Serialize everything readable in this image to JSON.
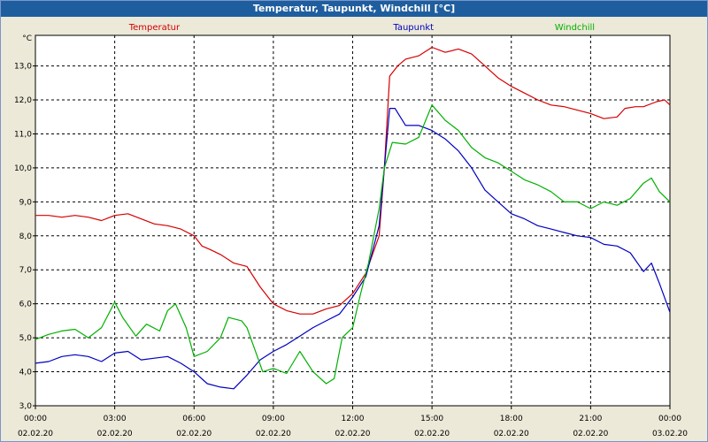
{
  "window": {
    "title": "Temperatur, Taupunkt, Windchill [°C]"
  },
  "chart_data": {
    "type": "line",
    "title": "Temperatur, Taupunkt, Windchill [°C]",
    "ylabel": "°C",
    "ylim": [
      3.0,
      13.9
    ],
    "yticks": [
      "3,0",
      "4,0",
      "5,0",
      "6,0",
      "7,0",
      "8,0",
      "9,0",
      "10,0",
      "11,0",
      "12,0",
      "13,0"
    ],
    "xlim": [
      0,
      24
    ],
    "xticks": [
      {
        "hour": 0,
        "time": "00:00",
        "date": "02.02.20"
      },
      {
        "hour": 3,
        "time": "03:00",
        "date": "02.02.20"
      },
      {
        "hour": 6,
        "time": "06:00",
        "date": "02.02.20"
      },
      {
        "hour": 9,
        "time": "09:00",
        "date": "02.02.20"
      },
      {
        "hour": 12,
        "time": "12:00",
        "date": "02.02.20"
      },
      {
        "hour": 15,
        "time": "15:00",
        "date": "02.02.20"
      },
      {
        "hour": 18,
        "time": "18:00",
        "date": "02.02.20"
      },
      {
        "hour": 21,
        "time": "21:00",
        "date": "02.02.20"
      },
      {
        "hour": 24,
        "time": "00:00",
        "date": "03.02.20"
      }
    ],
    "grid": true,
    "series": [
      {
        "name": "Temperatur",
        "color": "#d40000",
        "points": [
          [
            0,
            8.6
          ],
          [
            0.5,
            8.6
          ],
          [
            1,
            8.55
          ],
          [
            1.5,
            8.6
          ],
          [
            2,
            8.55
          ],
          [
            2.5,
            8.45
          ],
          [
            3,
            8.6
          ],
          [
            3.5,
            8.65
          ],
          [
            4,
            8.5
          ],
          [
            4.5,
            8.35
          ],
          [
            5,
            8.3
          ],
          [
            5.5,
            8.2
          ],
          [
            6,
            8.0
          ],
          [
            6.3,
            7.7
          ],
          [
            6.6,
            7.6
          ],
          [
            7,
            7.45
          ],
          [
            7.5,
            7.2
          ],
          [
            8,
            7.1
          ],
          [
            8.5,
            6.5
          ],
          [
            9,
            6.0
          ],
          [
            9.5,
            5.8
          ],
          [
            10,
            5.7
          ],
          [
            10.5,
            5.7
          ],
          [
            11,
            5.85
          ],
          [
            11.5,
            5.95
          ],
          [
            12,
            6.3
          ],
          [
            12.5,
            6.9
          ],
          [
            13,
            8.0
          ],
          [
            13.2,
            10.0
          ],
          [
            13.4,
            12.7
          ],
          [
            13.7,
            13.0
          ],
          [
            14,
            13.2
          ],
          [
            14.5,
            13.3
          ],
          [
            15,
            13.55
          ],
          [
            15.5,
            13.4
          ],
          [
            16,
            13.5
          ],
          [
            16.5,
            13.35
          ],
          [
            17,
            13.0
          ],
          [
            17.5,
            12.65
          ],
          [
            18,
            12.4
          ],
          [
            18.5,
            12.2
          ],
          [
            19,
            12.0
          ],
          [
            19.5,
            11.85
          ],
          [
            20,
            11.8
          ],
          [
            20.5,
            11.7
          ],
          [
            21,
            11.6
          ],
          [
            21.5,
            11.45
          ],
          [
            22,
            11.5
          ],
          [
            22.3,
            11.75
          ],
          [
            22.7,
            11.8
          ],
          [
            23,
            11.8
          ],
          [
            23.5,
            11.95
          ],
          [
            23.8,
            12.0
          ],
          [
            24,
            11.85
          ]
        ]
      },
      {
        "name": "Taupunkt",
        "color": "#0000c0",
        "points": [
          [
            0,
            4.25
          ],
          [
            0.5,
            4.3
          ],
          [
            1,
            4.45
          ],
          [
            1.5,
            4.5
          ],
          [
            2,
            4.45
          ],
          [
            2.5,
            4.3
          ],
          [
            3,
            4.55
          ],
          [
            3.5,
            4.6
          ],
          [
            4,
            4.35
          ],
          [
            4.5,
            4.4
          ],
          [
            5,
            4.45
          ],
          [
            5.5,
            4.25
          ],
          [
            6,
            4.0
          ],
          [
            6.5,
            3.65
          ],
          [
            7,
            3.55
          ],
          [
            7.5,
            3.5
          ],
          [
            8,
            3.9
          ],
          [
            8.5,
            4.35
          ],
          [
            9,
            4.6
          ],
          [
            9.5,
            4.8
          ],
          [
            10,
            5.05
          ],
          [
            10.5,
            5.3
          ],
          [
            11,
            5.5
          ],
          [
            11.5,
            5.7
          ],
          [
            12,
            6.2
          ],
          [
            12.5,
            6.8
          ],
          [
            13,
            8.3
          ],
          [
            13.2,
            10.0
          ],
          [
            13.4,
            11.75
          ],
          [
            13.6,
            11.75
          ],
          [
            14,
            11.25
          ],
          [
            14.5,
            11.25
          ],
          [
            15,
            11.1
          ],
          [
            15.5,
            10.85
          ],
          [
            16,
            10.5
          ],
          [
            16.5,
            10.0
          ],
          [
            17,
            9.35
          ],
          [
            17.5,
            9.0
          ],
          [
            18,
            8.65
          ],
          [
            18.5,
            8.5
          ],
          [
            19,
            8.3
          ],
          [
            19.5,
            8.2
          ],
          [
            20,
            8.1
          ],
          [
            20.5,
            8.0
          ],
          [
            21,
            7.95
          ],
          [
            21.5,
            7.75
          ],
          [
            22,
            7.7
          ],
          [
            22.5,
            7.5
          ],
          [
            23,
            6.95
          ],
          [
            23.3,
            7.2
          ],
          [
            23.6,
            6.6
          ],
          [
            24,
            5.75
          ]
        ]
      },
      {
        "name": "Windchill",
        "color": "#00b000",
        "points": [
          [
            0,
            4.95
          ],
          [
            0.5,
            5.1
          ],
          [
            1,
            5.2
          ],
          [
            1.5,
            5.25
          ],
          [
            2,
            5.0
          ],
          [
            2.5,
            5.3
          ],
          [
            3,
            6.05
          ],
          [
            3.3,
            5.6
          ],
          [
            3.8,
            5.05
          ],
          [
            4.2,
            5.4
          ],
          [
            4.7,
            5.2
          ],
          [
            5,
            5.8
          ],
          [
            5.3,
            6.0
          ],
          [
            5.7,
            5.3
          ],
          [
            6,
            4.45
          ],
          [
            6.5,
            4.6
          ],
          [
            7,
            5.0
          ],
          [
            7.3,
            5.6
          ],
          [
            7.8,
            5.5
          ],
          [
            8,
            5.3
          ],
          [
            8.3,
            4.65
          ],
          [
            8.6,
            4.0
          ],
          [
            9,
            4.1
          ],
          [
            9.5,
            3.95
          ],
          [
            10,
            4.6
          ],
          [
            10.5,
            4.0
          ],
          [
            11,
            3.65
          ],
          [
            11.3,
            3.8
          ],
          [
            11.6,
            5.0
          ],
          [
            12,
            5.3
          ],
          [
            12.3,
            6.3
          ],
          [
            12.6,
            7.2
          ],
          [
            13,
            8.8
          ],
          [
            13.2,
            10.0
          ],
          [
            13.5,
            10.75
          ],
          [
            14,
            10.7
          ],
          [
            14.5,
            10.9
          ],
          [
            15,
            11.85
          ],
          [
            15.5,
            11.4
          ],
          [
            16,
            11.1
          ],
          [
            16.5,
            10.6
          ],
          [
            17,
            10.3
          ],
          [
            17.5,
            10.15
          ],
          [
            18,
            9.9
          ],
          [
            18.5,
            9.65
          ],
          [
            19,
            9.5
          ],
          [
            19.5,
            9.3
          ],
          [
            20,
            9.0
          ],
          [
            20.5,
            9.0
          ],
          [
            21,
            8.8
          ],
          [
            21.5,
            9.0
          ],
          [
            22,
            8.9
          ],
          [
            22.5,
            9.1
          ],
          [
            23,
            9.55
          ],
          [
            23.3,
            9.7
          ],
          [
            23.6,
            9.3
          ],
          [
            24,
            9.0
          ]
        ]
      }
    ]
  }
}
